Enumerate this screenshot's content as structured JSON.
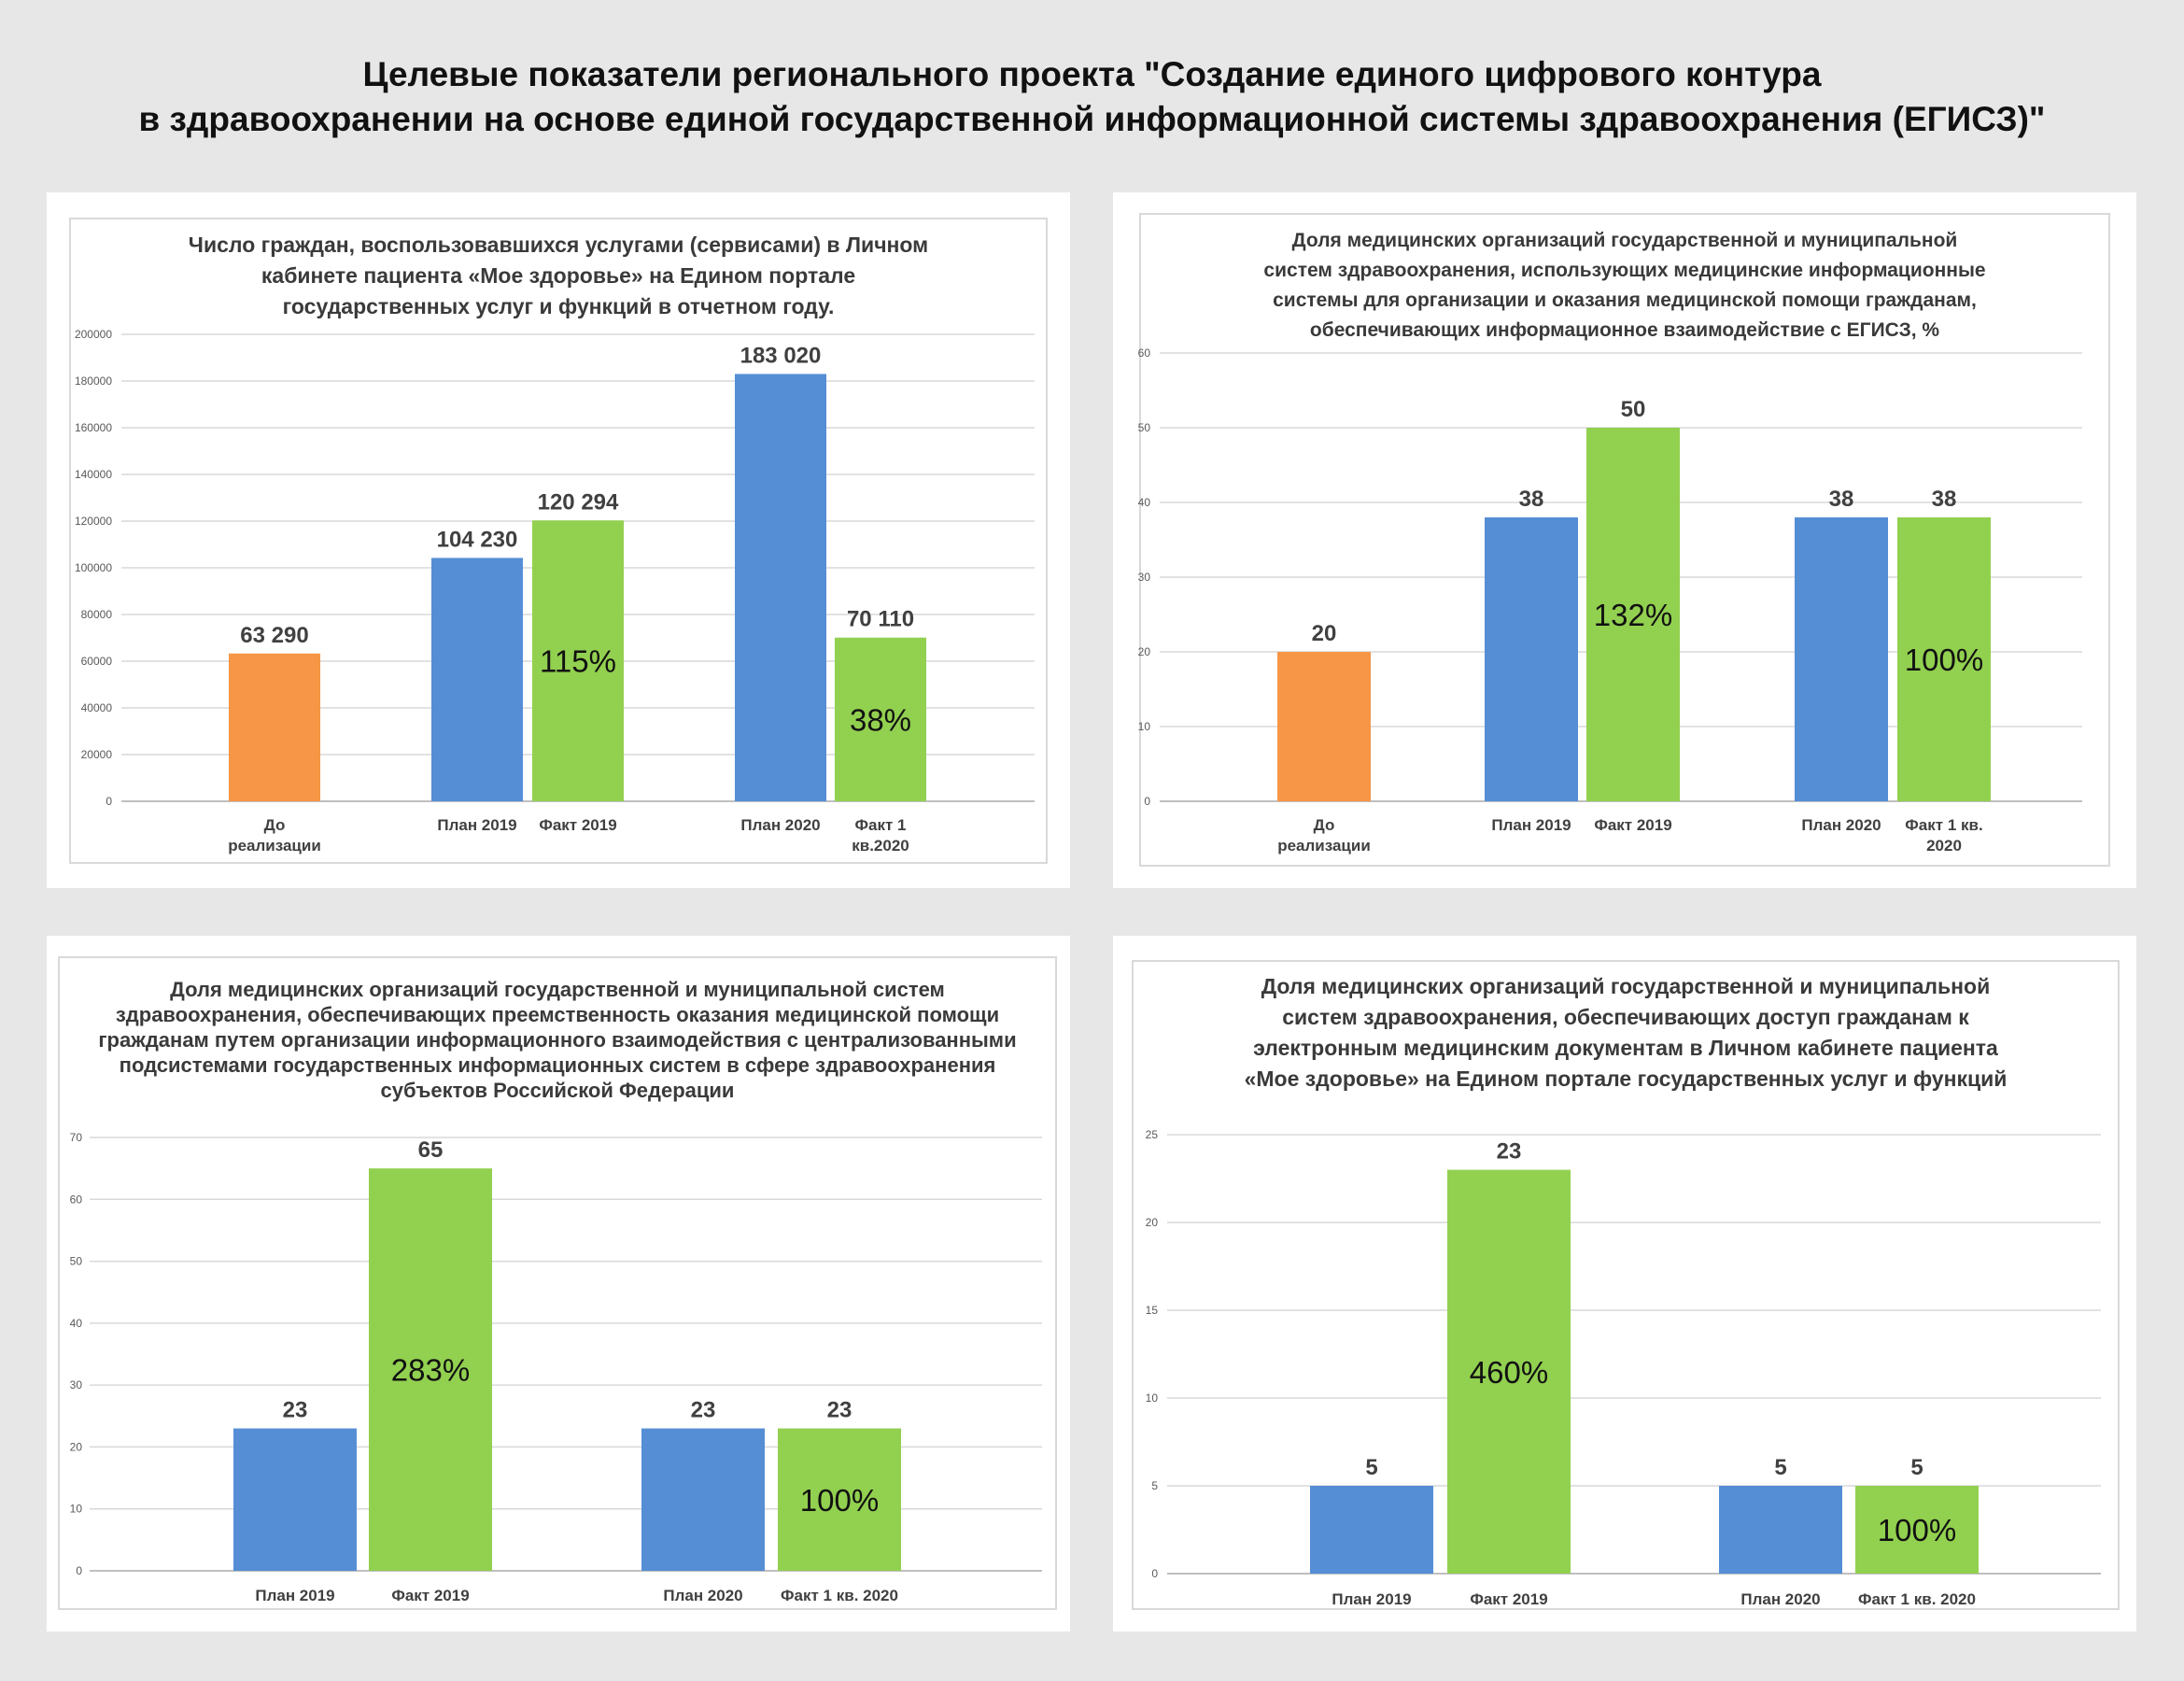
{
  "page": {
    "title_line1": "Целевые показатели регионального проекта \"Создание единого цифрового контура",
    "title_line2": "в здравоохранении на основе единой государственной информационной системы здравоохранения (ЕГИСЗ)\""
  },
  "colors": {
    "orange": "#f79646",
    "blue": "#558ed5",
    "green": "#92d050"
  },
  "chart_data": [
    {
      "type": "bar",
      "title_lines": [
        "Число граждан, воспользовавшихся услугами (сервисами) в Личном",
        "кабинете пациента «Мое здоровье» на Едином портале",
        "государственных услуг и функций в отчетном году."
      ],
      "ylim": [
        0,
        200000
      ],
      "yticks": [
        "0",
        "20000",
        "40000",
        "60000",
        "80000",
        "100000",
        "120000",
        "140000",
        "160000",
        "180000",
        "200000"
      ],
      "bars": [
        {
          "category": [
            "До",
            "реализации"
          ],
          "value": 63290,
          "label": "63 290",
          "color": "orange",
          "group": 0
        },
        {
          "category": [
            "План 2019"
          ],
          "value": 104230,
          "label": "104 230",
          "color": "blue",
          "group": 1
        },
        {
          "category": [
            "Факт 2019"
          ],
          "value": 120294,
          "label": "120 294",
          "color": "green",
          "group": 1,
          "pct": "115%"
        },
        {
          "category": [
            "План 2020"
          ],
          "value": 183020,
          "label": "183 020",
          "color": "blue",
          "group": 2
        },
        {
          "category": [
            "Факт 1",
            "кв.2020"
          ],
          "value": 70110,
          "label": "70 110",
          "color": "green",
          "group": 2,
          "pct": "38%"
        }
      ]
    },
    {
      "type": "bar",
      "title_lines": [
        "Доля медицинских организаций государственной и муниципальной",
        "систем здравоохранения, использующих медицинские информационные",
        "системы для организации и оказания медицинской помощи гражданам,",
        "обеспечивающих информационное взаимодействие с ЕГИСЗ, %"
      ],
      "ylim": [
        0,
        60
      ],
      "yticks": [
        "0",
        "10",
        "20",
        "30",
        "40",
        "50",
        "60"
      ],
      "bars": [
        {
          "category": [
            "До",
            "реализации"
          ],
          "value": 20,
          "label": "20",
          "color": "orange",
          "group": 0
        },
        {
          "category": [
            "План 2019"
          ],
          "value": 38,
          "label": "38",
          "color": "blue",
          "group": 1
        },
        {
          "category": [
            "Факт 2019"
          ],
          "value": 50,
          "label": "50",
          "color": "green",
          "group": 1,
          "pct": "132%"
        },
        {
          "category": [
            "План 2020"
          ],
          "value": 38,
          "label": "38",
          "color": "blue",
          "group": 2
        },
        {
          "category": [
            "Факт 1 кв.",
            "2020"
          ],
          "value": 38,
          "label": "38",
          "color": "green",
          "group": 2,
          "pct": "100%"
        }
      ]
    },
    {
      "type": "bar",
      "title_lines": [
        "Доля медицинских организаций государственной и муниципальной систем",
        "здравоохранения, обеспечивающих преемственность оказания медицинской помощи",
        "гражданам путем организации информационного взаимодействия с централизованными",
        "подсистемами государственных информационных систем в сфере здравоохранения",
        "субъектов Российской Федерации"
      ],
      "ylim": [
        0,
        70
      ],
      "yticks": [
        "0",
        "10",
        "20",
        "30",
        "40",
        "50",
        "60",
        "70"
      ],
      "bars": [
        {
          "category": [
            "План 2019"
          ],
          "value": 23,
          "label": "23",
          "color": "blue",
          "group": 0
        },
        {
          "category": [
            "Факт 2019"
          ],
          "value": 65,
          "label": "65",
          "color": "green",
          "group": 0,
          "pct": "283%"
        },
        {
          "category": [
            "План 2020"
          ],
          "value": 23,
          "label": "23",
          "color": "blue",
          "group": 1
        },
        {
          "category": [
            "Факт 1 кв. 2020"
          ],
          "value": 23,
          "label": "23",
          "color": "green",
          "group": 1,
          "pct": "100%"
        }
      ]
    },
    {
      "type": "bar",
      "title_lines": [
        "Доля медицинских организаций государственной и муниципальной",
        "систем здравоохранения, обеспечивающих доступ гражданам к",
        "электронным медицинским документам в Личном кабинете пациента",
        "«Мое здоровье» на Едином портале государственных услуг и функций"
      ],
      "ylim": [
        0,
        25
      ],
      "yticks": [
        "0",
        "5",
        "10",
        "15",
        "20",
        "25"
      ],
      "bars": [
        {
          "category": [
            "План 2019"
          ],
          "value": 5,
          "label": "5",
          "color": "blue",
          "group": 0
        },
        {
          "category": [
            "Факт 2019"
          ],
          "value": 23,
          "label": "23",
          "color": "green",
          "group": 0,
          "pct": "460%"
        },
        {
          "category": [
            "План 2020"
          ],
          "value": 5,
          "label": "5",
          "color": "blue",
          "group": 1
        },
        {
          "category": [
            "Факт 1 кв. 2020"
          ],
          "value": 5,
          "label": "5",
          "color": "green",
          "group": 1,
          "pct": "100%"
        }
      ]
    }
  ]
}
